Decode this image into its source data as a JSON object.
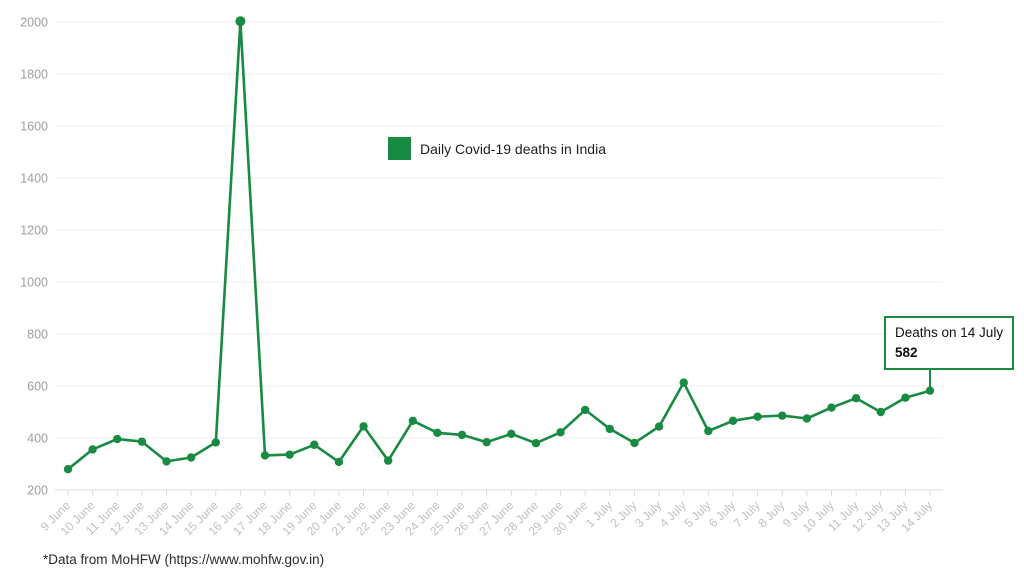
{
  "chart_data": {
    "type": "line",
    "title": "Daily Covid-19 deaths in India",
    "categories": [
      "9 June",
      "10 June",
      "11 June",
      "12 June",
      "13 June",
      "14 June",
      "15 June",
      "16 June",
      "17 June",
      "18 June",
      "19 June",
      "20 June",
      "21 June",
      "22 June",
      "23 June",
      "24 June",
      "25 June",
      "26 June",
      "27 June",
      "28 June",
      "29 June",
      "30 June",
      "1 July",
      "2 July",
      "3 July",
      "4 July",
      "5 July",
      "6 July",
      "7 July",
      "8 July",
      "9 July",
      "10 July",
      "11 July",
      "12 July",
      "13 July",
      "14 July"
    ],
    "values": [
      280,
      356,
      396,
      386,
      310,
      325,
      383,
      2003,
      333,
      336,
      374,
      308,
      445,
      313,
      466,
      420,
      412,
      384,
      416,
      380,
      422,
      508,
      435,
      381,
      444,
      613,
      427,
      466,
      482,
      486,
      475,
      517,
      553,
      500,
      555,
      582
    ],
    "ylim": [
      200,
      2000
    ],
    "ytick_interval": 200,
    "yticks": [
      200,
      400,
      600,
      800,
      1000,
      1200,
      1400,
      1600,
      1800,
      2000
    ],
    "grid": true,
    "legend_position": "top-center",
    "color": "#188a42",
    "annotation": {
      "label": "Deaths on 14 July",
      "value": "582",
      "target_category": "14 July"
    }
  },
  "footer": {
    "note": "*Data from MoHFW (https://www.mohfw.gov.in)"
  },
  "colors": {
    "series": "#188a42",
    "grid": "#ececec",
    "axis_line": "#dcdcdc",
    "tick": "#dcdcdc",
    "y_label": "#9e9e9e",
    "x_label": "#c1c1c1",
    "background": "#ffffff"
  }
}
